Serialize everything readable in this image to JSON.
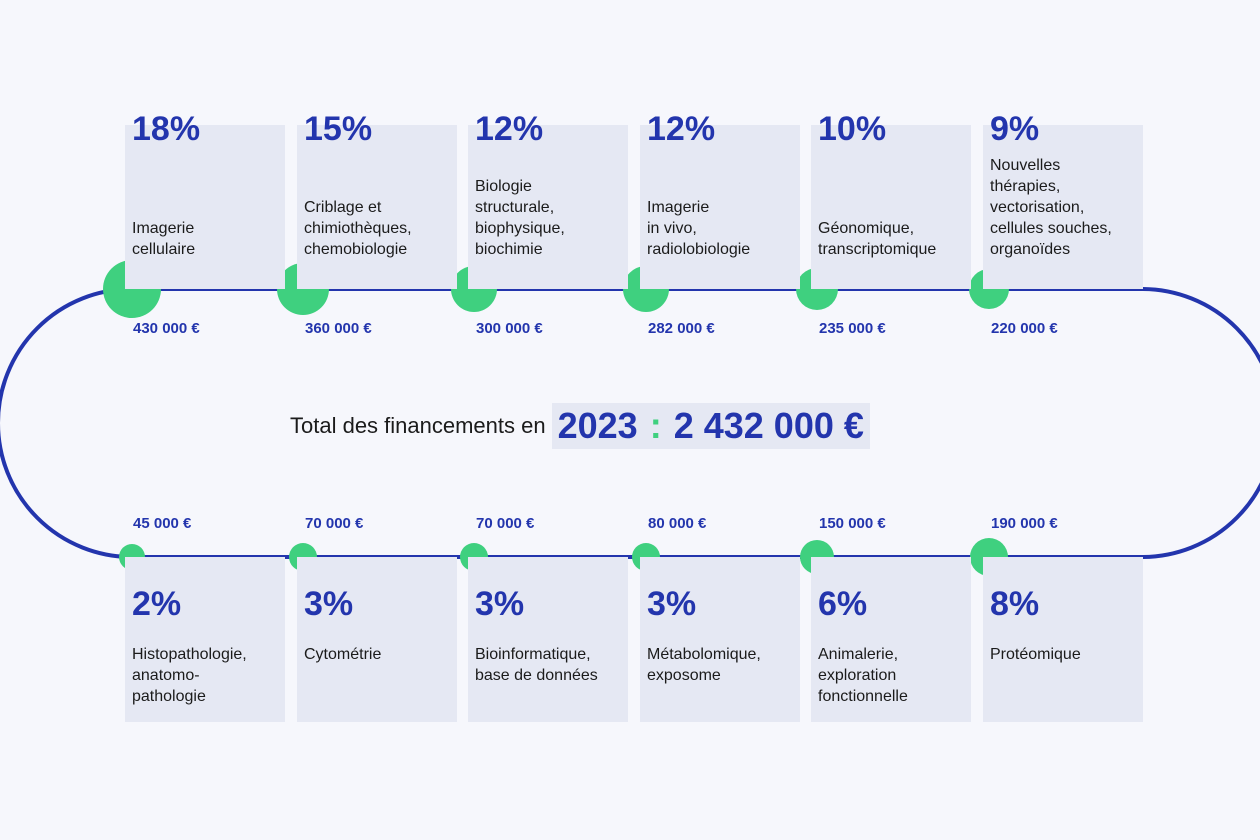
{
  "total": {
    "prefix": "Total des financements en",
    "year": "2023",
    "separator": ":",
    "amount": "2 432 000 €"
  },
  "colors": {
    "track": "#2335ad",
    "node": "#3fd07f",
    "card": "#e5e8f3",
    "accent_text": "#2335ad"
  },
  "top_items": [
    {
      "percent": "18%",
      "value": 18,
      "label": "Imagerie\ncellulaire",
      "amount": "430 000 €"
    },
    {
      "percent": "15%",
      "value": 15,
      "label": "Criblage et\nchimiothèques,\nchemobiologie",
      "amount": "360 000 €"
    },
    {
      "percent": "12%",
      "value": 12,
      "label": "Biologie\nstructurale,\nbiophysique,\nbiochimie",
      "amount": "300 000 €"
    },
    {
      "percent": "12%",
      "value": 12,
      "label": "Imagerie\nin vivo,\nradiolobiologie",
      "amount": "282 000 €"
    },
    {
      "percent": "10%",
      "value": 10,
      "label": "Géonomique,\ntranscriptomique",
      "amount": "235 000 €"
    },
    {
      "percent": "9%",
      "value": 9,
      "label": "Nouvelles\nthérapies,\nvectorisation,\ncellules souches,\norganoïdes",
      "amount": "220 000 €"
    }
  ],
  "bottom_items": [
    {
      "percent": "2%",
      "value": 2,
      "label": "Histopathologie,\nanatomo-\npathologie",
      "amount": "45 000 €"
    },
    {
      "percent": "3%",
      "value": 3,
      "label": "Cytométrie",
      "amount": "70 000 €"
    },
    {
      "percent": "3%",
      "value": 3,
      "label": "Bioinformatique,\nbase de données",
      "amount": "70 000 €"
    },
    {
      "percent": "3%",
      "value": 3,
      "label": "Métabolomique,\nexposome",
      "amount": "80 000 €"
    },
    {
      "percent": "6%",
      "value": 6,
      "label": "Animalerie,\nexploration\nfonctionnelle",
      "amount": "150 000 €"
    },
    {
      "percent": "8%",
      "value": 8,
      "label": "Protéomique",
      "amount": "190 000 €"
    }
  ]
}
